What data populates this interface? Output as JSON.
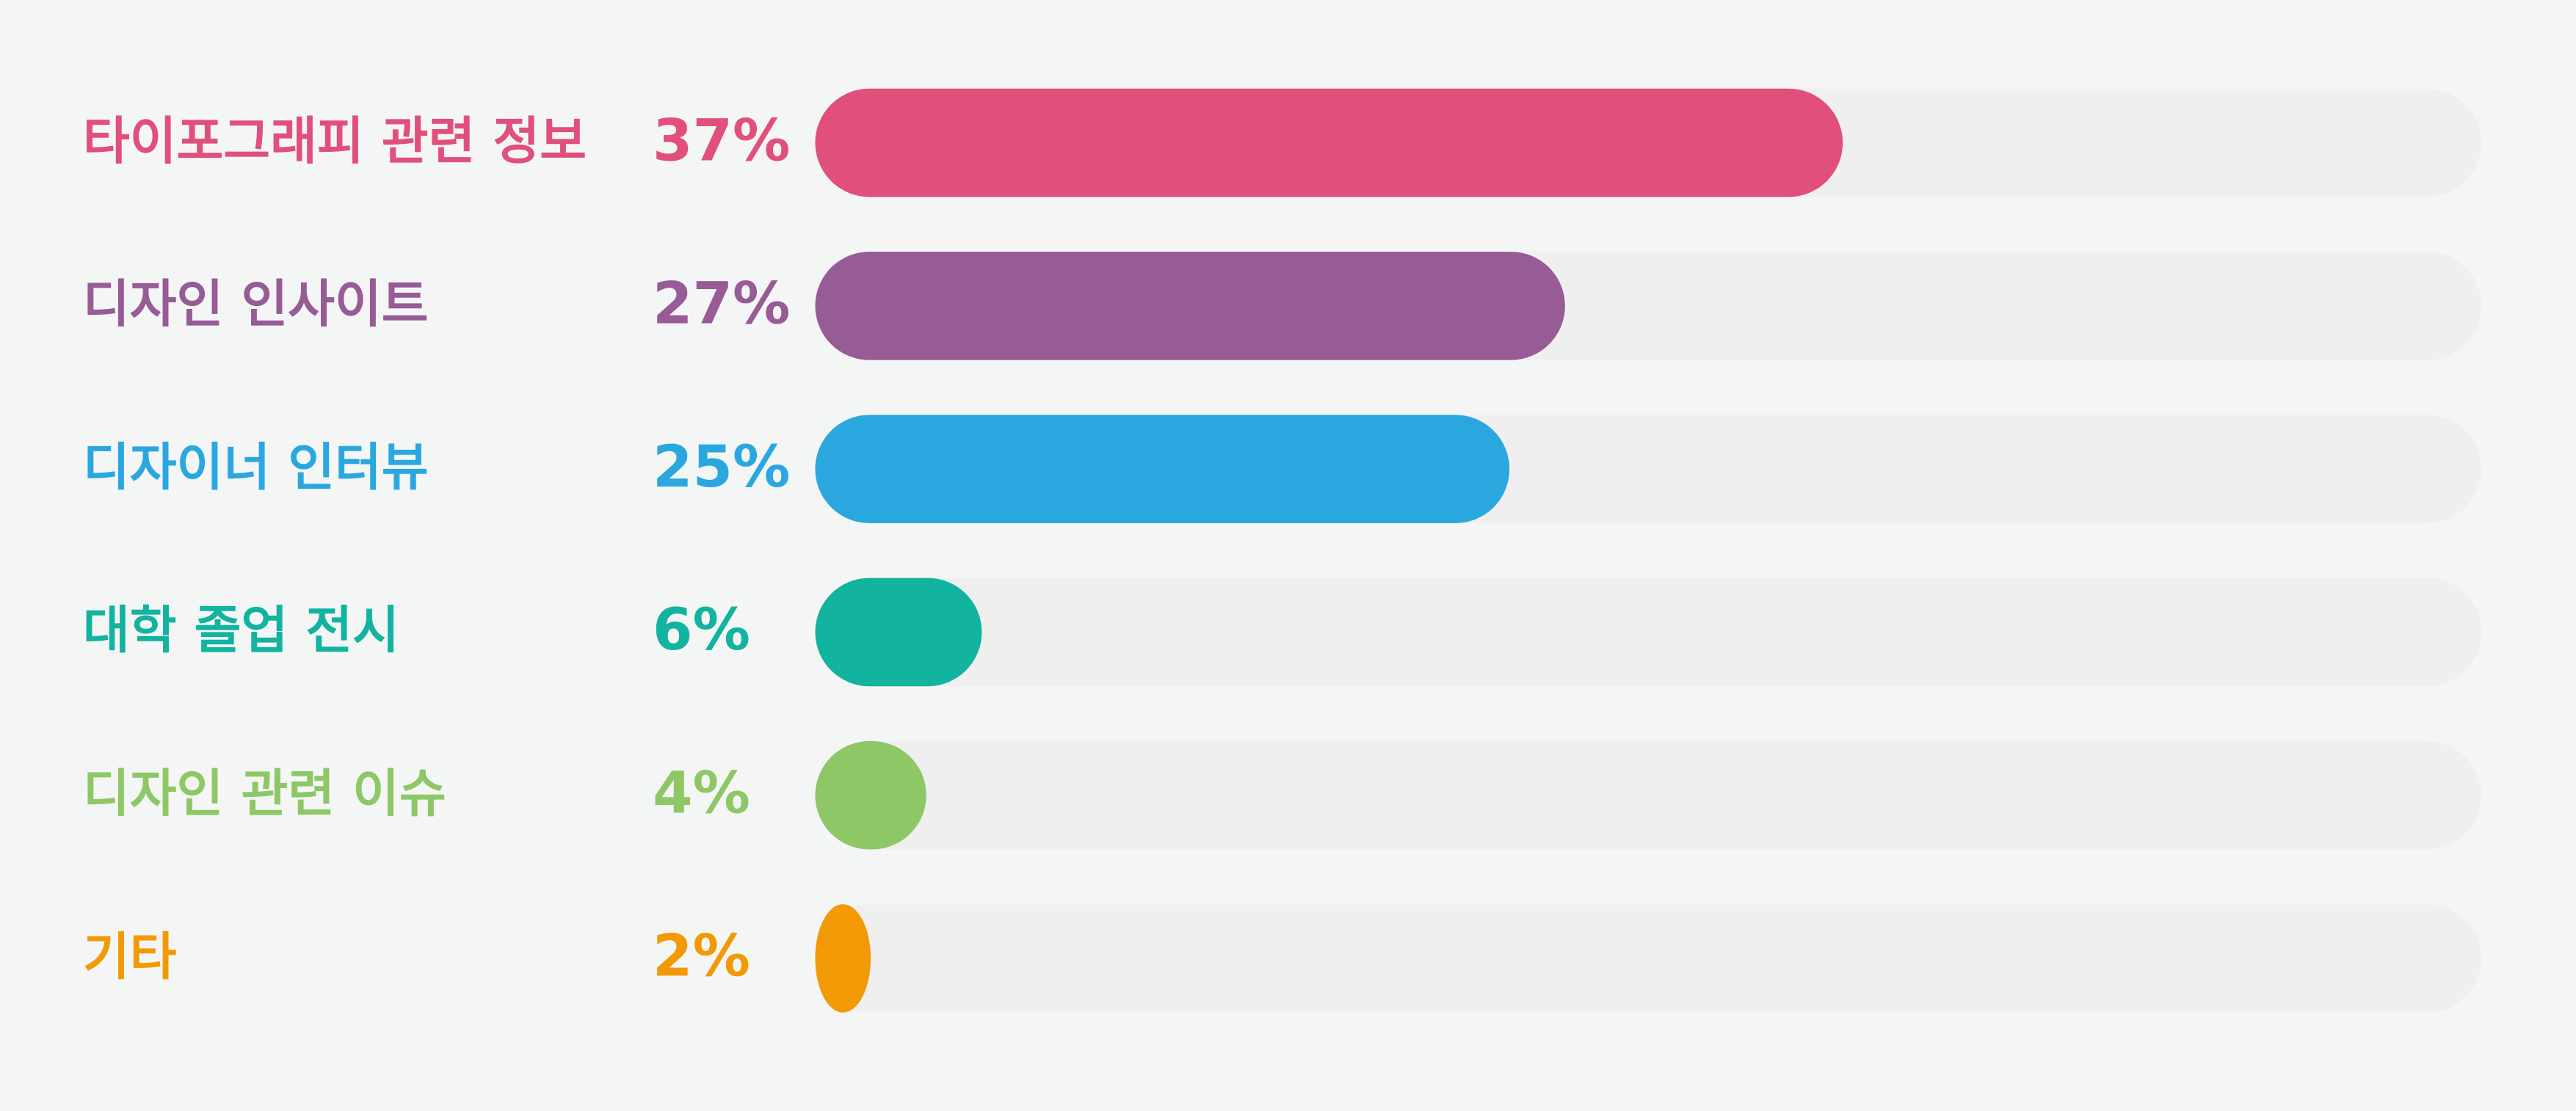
{
  "chart_data": {
    "type": "bar",
    "orientation": "horizontal",
    "categories": [
      "타이포그래피 관련 정보",
      "디자인 인사이트",
      "디자이너 인터뷰",
      "대학 졸업 전시",
      "디자인 관련 이슈",
      "기타"
    ],
    "values": [
      37,
      27,
      25,
      6,
      4,
      2
    ],
    "value_labels": [
      "37%",
      "27%",
      "25%",
      "6%",
      "4%",
      "2%"
    ],
    "colors": [
      "#e14f7b",
      "#975b95",
      "#2ba7e0",
      "#12b39f",
      "#8ec766",
      "#f29a06"
    ],
    "track_color": "#efefef",
    "xlim": [
      0,
      60
    ]
  }
}
